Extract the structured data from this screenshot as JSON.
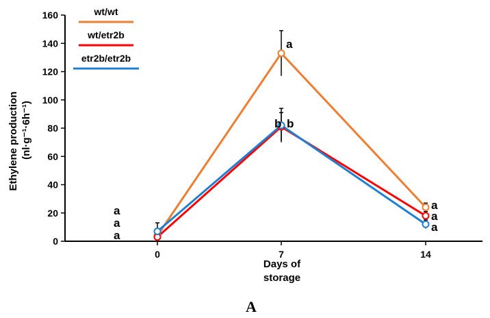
{
  "chart_data": {
    "type": "line",
    "panel_label": "A",
    "xlabel_lines": [
      "Days of",
      "storage"
    ],
    "ylabel_lines": [
      "Ethylene production",
      "(nl·g⁻¹·6h⁻¹)"
    ],
    "categories": [
      "0",
      "7",
      "14"
    ],
    "ylim": [
      0,
      160
    ],
    "yticks": [
      "0",
      "20",
      "40",
      "60",
      "80",
      "100",
      "120",
      "140",
      "160"
    ],
    "grid": false,
    "legend_position": "top-left",
    "series": [
      {
        "name": "wt/wt",
        "color": "#ED7D31",
        "values": [
          4,
          133,
          24
        ],
        "errors": [
          2,
          16,
          3
        ],
        "letters": [
          "a",
          "a",
          "a"
        ]
      },
      {
        "name": "wt/etr2b",
        "color": "#FF0000",
        "values": [
          3,
          81,
          18
        ],
        "errors": [
          2,
          10,
          3
        ],
        "letters": [
          "a",
          "b",
          "a"
        ]
      },
      {
        "name": "etr2b/etr2b",
        "color": "#1F7FD0",
        "values": [
          7,
          82,
          12
        ],
        "errors": [
          6,
          12,
          3
        ],
        "letters": [
          "a",
          "b",
          "a"
        ]
      }
    ]
  }
}
